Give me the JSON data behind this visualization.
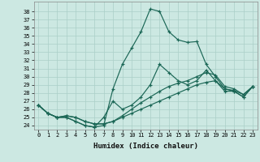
{
  "xlabel": "Humidex (Indice chaleur)",
  "bg_color": "#cce8e2",
  "line_color": "#1a6655",
  "grid_color": "#aacfc8",
  "x": [
    0,
    1,
    2,
    3,
    4,
    5,
    6,
    7,
    8,
    9,
    10,
    11,
    12,
    13,
    14,
    15,
    16,
    17,
    18,
    19,
    20,
    21,
    22,
    23
  ],
  "series": [
    [
      26.5,
      25.5,
      25.0,
      25.0,
      24.5,
      24.0,
      23.8,
      24.0,
      28.5,
      31.5,
      33.5,
      35.5,
      38.3,
      38.0,
      35.5,
      34.5,
      34.2,
      34.3,
      31.5,
      30.0,
      28.5,
      28.3,
      27.8,
      28.8
    ],
    [
      26.5,
      25.5,
      25.0,
      25.0,
      24.5,
      24.0,
      23.8,
      25.0,
      27.0,
      26.0,
      26.5,
      27.5,
      29.0,
      31.5,
      30.5,
      29.5,
      29.0,
      29.5,
      30.8,
      29.5,
      28.2,
      28.2,
      27.5,
      28.8
    ],
    [
      26.5,
      25.5,
      25.0,
      25.2,
      25.0,
      24.5,
      24.2,
      24.2,
      24.5,
      25.2,
      26.0,
      26.8,
      27.5,
      28.2,
      28.8,
      29.2,
      29.5,
      30.0,
      30.5,
      30.2,
      28.8,
      28.5,
      27.8,
      28.8
    ],
    [
      26.5,
      25.5,
      25.0,
      25.2,
      25.0,
      24.5,
      24.2,
      24.2,
      24.5,
      25.0,
      25.5,
      26.0,
      26.5,
      27.0,
      27.5,
      28.0,
      28.5,
      29.0,
      29.3,
      29.5,
      28.5,
      28.2,
      27.5,
      28.8
    ]
  ],
  "ylim": [
    23.5,
    39.2
  ],
  "yticks": [
    24,
    25,
    26,
    27,
    28,
    29,
    30,
    31,
    32,
    33,
    34,
    35,
    36,
    37,
    38
  ],
  "xticks": [
    0,
    1,
    2,
    3,
    4,
    5,
    6,
    7,
    8,
    9,
    10,
    11,
    12,
    13,
    14,
    15,
    16,
    17,
    18,
    19,
    20,
    21,
    22,
    23
  ],
  "tick_fontsize": 5.0,
  "xlabel_fontsize": 6.5
}
